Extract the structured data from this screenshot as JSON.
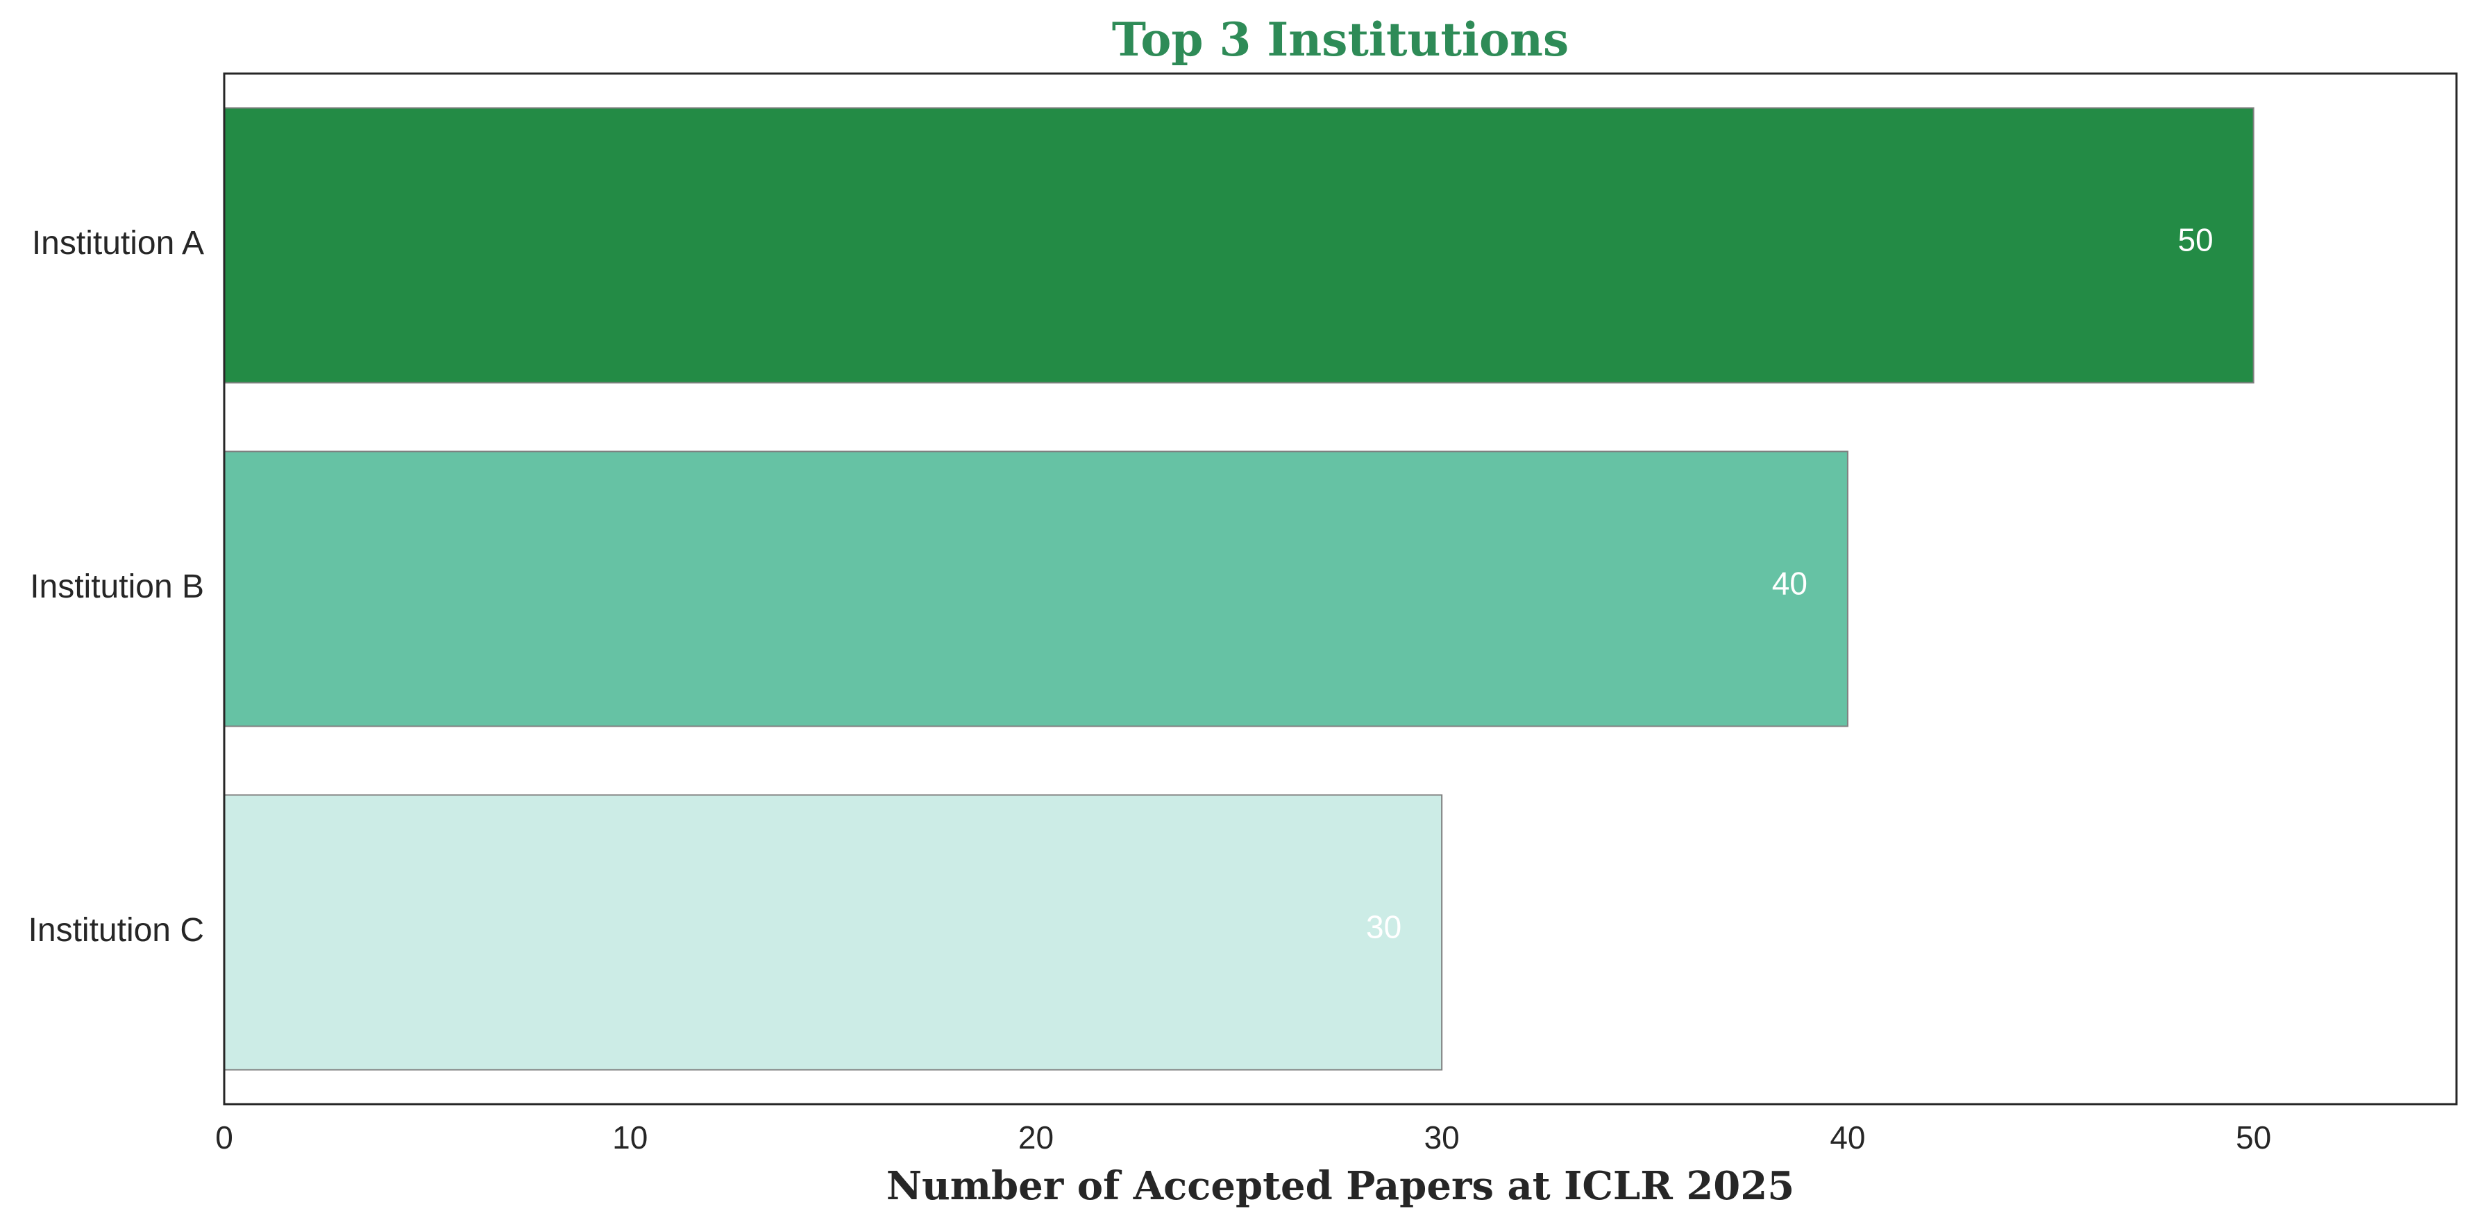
{
  "chart_data": {
    "type": "bar",
    "orientation": "horizontal",
    "title": "Top 3 Institutions",
    "xlabel": "Number of Accepted Papers at ICLR 2025",
    "ylabel": "",
    "categories": [
      "Institution A",
      "Institution B",
      "Institution C"
    ],
    "values": [
      50,
      40,
      30
    ],
    "value_labels": [
      "50",
      "40",
      "30"
    ],
    "xlim": [
      0,
      55
    ],
    "xticks": [
      0,
      10,
      20,
      30,
      40,
      50
    ],
    "xtick_labels": [
      "0",
      "10",
      "20",
      "30",
      "40",
      "50"
    ],
    "grid": false,
    "colors": {
      "title": "#2e8b57",
      "bars": [
        "#238b45",
        "#66c2a4",
        "#ccece6"
      ],
      "bar_edge": "#7f7f7f",
      "frame": "#262626"
    }
  }
}
